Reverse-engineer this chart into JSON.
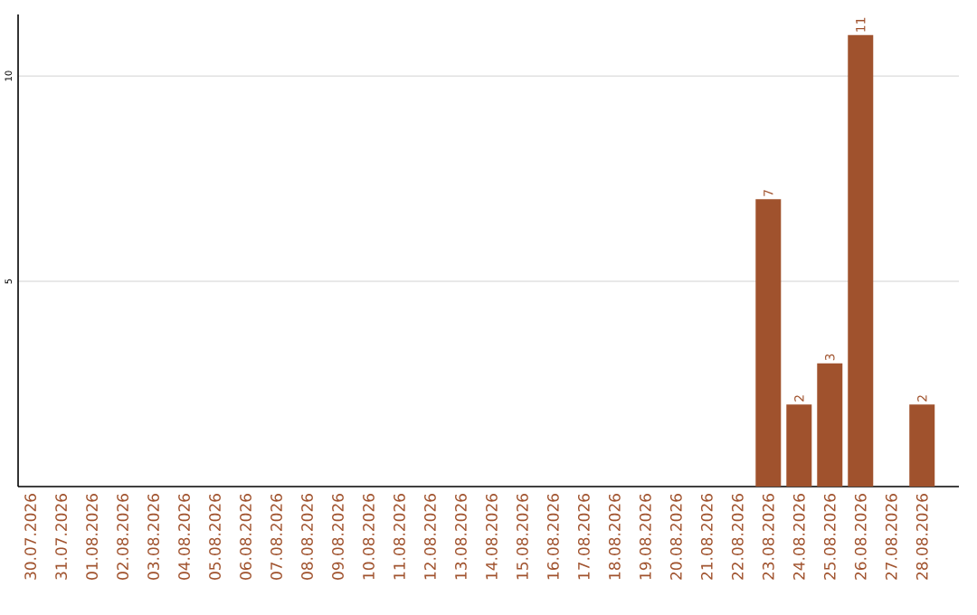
{
  "chart_data": {
    "type": "bar",
    "categories": [
      "30.07.2026",
      "31.07.2026",
      "01.08.2026",
      "02.08.2026",
      "03.08.2026",
      "04.08.2026",
      "05.08.2026",
      "06.08.2026",
      "07.08.2026",
      "08.08.2026",
      "09.08.2026",
      "10.08.2026",
      "11.08.2026",
      "12.08.2026",
      "13.08.2026",
      "14.08.2026",
      "15.08.2026",
      "16.08.2026",
      "17.08.2026",
      "18.08.2026",
      "19.08.2026",
      "20.08.2026",
      "21.08.2026",
      "22.08.2026",
      "23.08.2026",
      "24.08.2026",
      "25.08.2026",
      "26.08.2026",
      "27.08.2026",
      "28.08.2026"
    ],
    "values": [
      0,
      0,
      0,
      0,
      0,
      0,
      0,
      0,
      0,
      0,
      0,
      0,
      0,
      0,
      0,
      0,
      0,
      0,
      0,
      0,
      0,
      0,
      0,
      0,
      7,
      2,
      3,
      11,
      0,
      2
    ],
    "value_labels": [
      null,
      null,
      null,
      null,
      null,
      null,
      null,
      null,
      null,
      null,
      null,
      null,
      null,
      null,
      null,
      null,
      null,
      null,
      null,
      null,
      null,
      null,
      null,
      null,
      "7",
      "2",
      "3",
      "11",
      null,
      "2"
    ],
    "color": "#a0522d",
    "ylim": [
      0,
      11.5
    ],
    "yticks": [
      5,
      10
    ],
    "grid": "y"
  }
}
